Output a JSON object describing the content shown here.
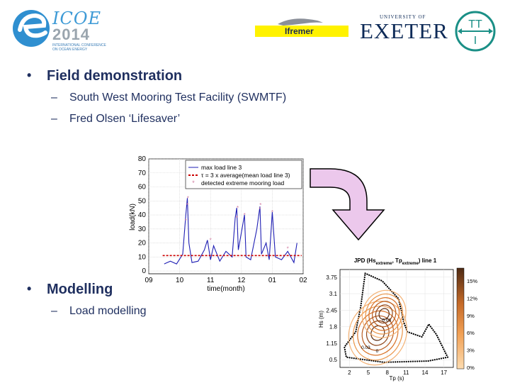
{
  "header": {
    "icoe": {
      "title": "ICOE",
      "year": "2014",
      "subtitle_line1": "INTERNATIONAL CONFERENCE",
      "subtitle_line2": "ON OCEAN ENERGY"
    },
    "ifremer": "Ifremer",
    "exeter": {
      "top": "UNIVERSITY OF",
      "main": "EXETER"
    },
    "tti": {
      "top": "TT",
      "bottom": "I"
    }
  },
  "bullets": [
    {
      "label": "Field demonstration",
      "subitems": [
        "South West Mooring Test Facility (SWMTF)",
        "Fred Olsen ‘Lifesaver’"
      ]
    },
    {
      "label": "Modelling",
      "subitems": [
        "Load modelling"
      ]
    }
  ],
  "colors": {
    "text": "#1f2f5f",
    "arrow_fill": "#ecc8ec",
    "line_load": "#1f1fb4",
    "threshold": "#cc0000",
    "extreme_marker": "#d07aa0"
  },
  "chart_data": [
    {
      "type": "line",
      "xlabel": "time(month)",
      "ylabel": "load(kN)",
      "x_ticks": [
        "09",
        "10",
        "11",
        "12",
        "01",
        "02"
      ],
      "y_ticks": [
        0,
        10,
        20,
        30,
        40,
        50,
        60,
        70,
        80
      ],
      "ylim": [
        -2,
        80
      ],
      "grid": true,
      "legend_position": "top-right",
      "series": [
        {
          "name": "max load line 3",
          "style": "line",
          "x": [
            9.5,
            9.7,
            9.9,
            10.1,
            10.2,
            10.25,
            10.3,
            10.4,
            10.6,
            10.8,
            10.9,
            11.0,
            11.1,
            11.3,
            11.5,
            11.7,
            11.8,
            11.85,
            11.9,
            12.1,
            12.15,
            12.3,
            12.5,
            12.6,
            12.65,
            12.8,
            12.9,
            13.0,
            13.1,
            13.3,
            13.5,
            13.7,
            13.8
          ],
          "y": [
            5,
            7,
            5,
            12,
            40,
            52,
            20,
            6,
            7,
            15,
            22,
            8,
            18,
            7,
            14,
            10,
            38,
            45,
            15,
            40,
            10,
            8,
            30,
            46,
            12,
            20,
            8,
            42,
            10,
            8,
            14,
            6,
            20
          ]
        },
        {
          "name": "τ = 3 x average(mean load line 3)",
          "style": "dashed",
          "y": 11
        },
        {
          "name": "detected extreme mooring load",
          "style": "markers",
          "x": [
            10.2,
            10.25,
            10.27,
            11.0,
            11.85,
            11.88,
            12.1,
            12.6,
            12.62,
            13.0,
            13.5
          ],
          "y": [
            36,
            47,
            52,
            22,
            38,
            45,
            40,
            44,
            47,
            42,
            16
          ]
        }
      ]
    },
    {
      "type": "contour",
      "title": "JPD (Hs",
      "title_sub1": "extreme",
      "title_mid": ", Tp",
      "title_sub2": "extreme",
      "title_end": ") line 1",
      "xlabel": "Tp (s)",
      "ylabel": "Hs (m)",
      "x_ticks": [
        "2",
        "5",
        "8",
        "11",
        "14",
        "17"
      ],
      "y_ticks": [
        "0.5",
        "1.15",
        "1.8",
        "2.45",
        "3.1",
        "3.75"
      ],
      "colorbar_ticks": [
        "0%",
        "3%",
        "6%",
        "9%",
        "12%",
        "15%"
      ],
      "contour_labels": [
        "0.06",
        "0.03",
        "0"
      ],
      "peaks": [
        {
          "tp": 6.5,
          "hs": 1.55
        },
        {
          "tp": 7.5,
          "hs": 2.3
        }
      ]
    }
  ]
}
